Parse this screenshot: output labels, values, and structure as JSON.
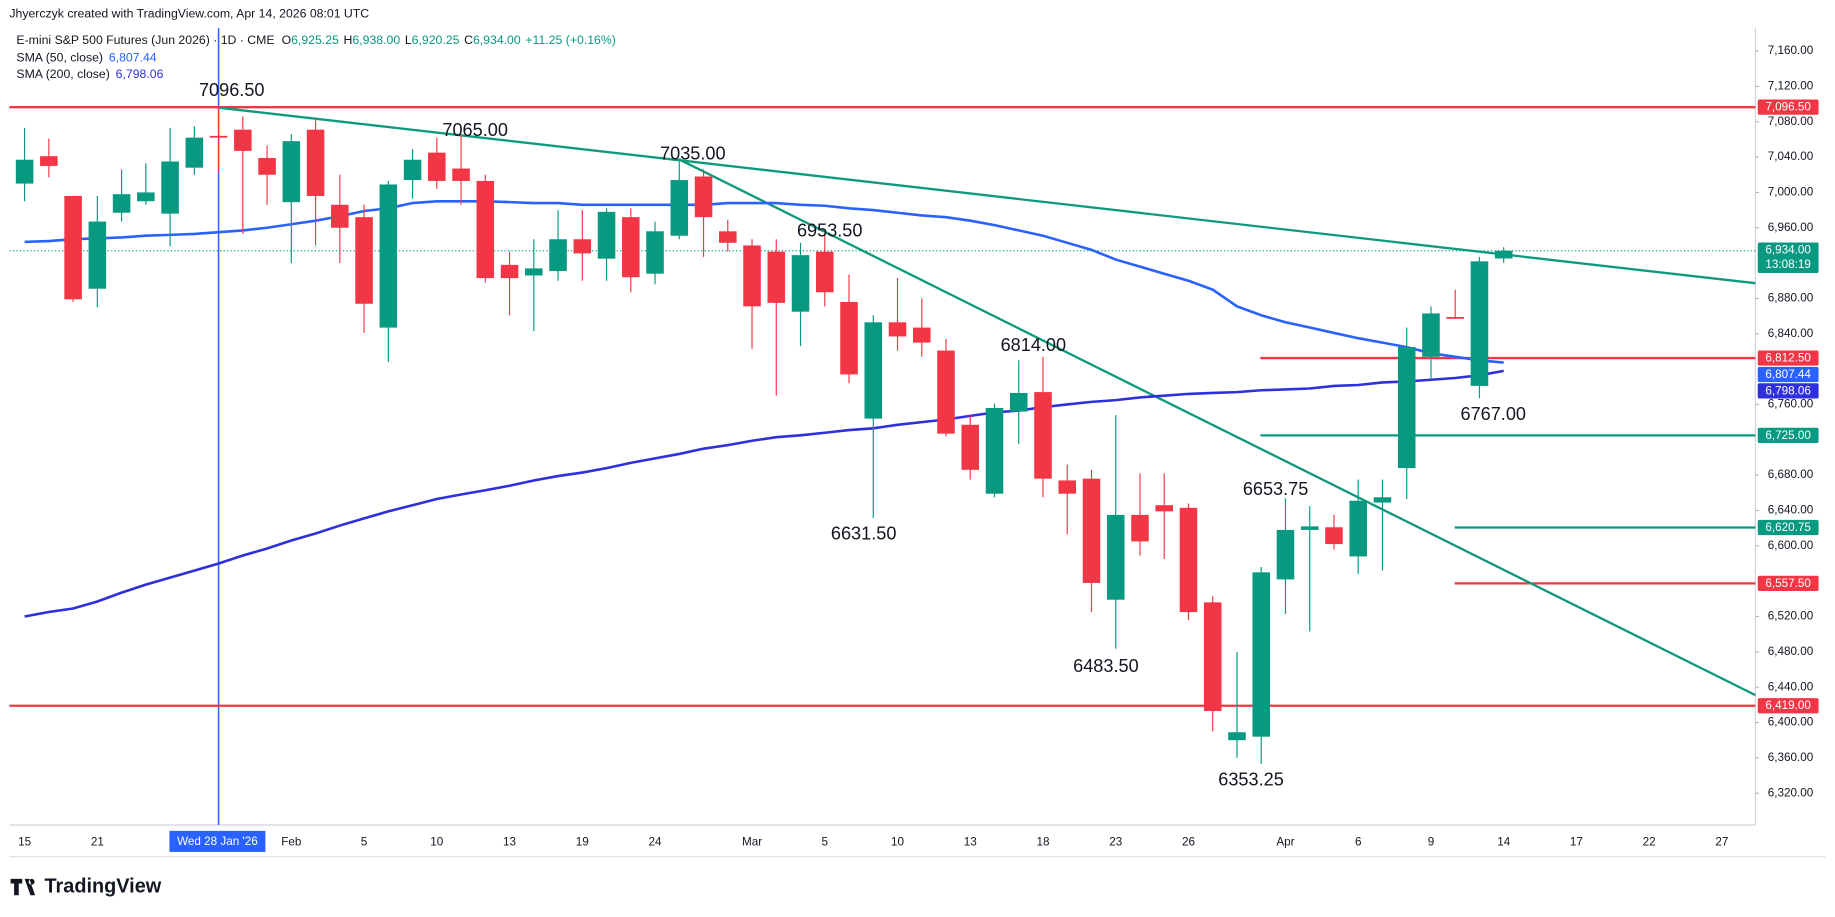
{
  "chart_data": {
    "type": "candlestick",
    "credit": "Jhyerczyk created with TradingView.com, Apr 14, 2026 08:01 UTC",
    "symbol": "E-mini S&P 500 Futures (Jun 2026) · 1D · CME",
    "ohlc_legend": [
      {
        "label": "O",
        "value": "6,925.25"
      },
      {
        "label": "H",
        "value": "6,938.00"
      },
      {
        "label": "L",
        "value": "6,920.25"
      },
      {
        "label": "C",
        "value": "6,934.00"
      }
    ],
    "change": "+11.25 (+0.16%)",
    "up_color": "#089981",
    "down_color": "#f23645",
    "categories": [
      "15",
      null,
      null,
      "21",
      null,
      null,
      null,
      null,
      null,
      null,
      null,
      "Feb",
      null,
      null,
      "5",
      null,
      null,
      "10",
      null,
      null,
      "13",
      null,
      null,
      "19",
      null,
      null,
      "24",
      null,
      null,
      null,
      "Mar",
      null,
      null,
      "5",
      null,
      null,
      "10",
      null,
      null,
      "13",
      null,
      null,
      "18",
      null,
      null,
      "23",
      null,
      null,
      "26",
      null,
      null,
      null,
      "Apr",
      null,
      null,
      "6",
      null,
      null,
      "9",
      null,
      null,
      "14",
      null,
      null,
      "17",
      null,
      null,
      "22",
      null,
      null,
      "27",
      null
    ],
    "open": [
      7010,
      7041,
      6996,
      6891,
      6977,
      6990,
      6976,
      7028,
      7064,
      7071,
      7039,
      6989,
      7071,
      6986,
      6972,
      6847,
      7014,
      7045,
      7027,
      7013,
      6918,
      6906,
      6911,
      6947,
      6925,
      6972,
      6908,
      6951,
      7018,
      6956,
      6940,
      6933,
      6865,
      6933,
      6876,
      6744,
      6853,
      6847,
      6821,
      6737,
      6659,
      6752,
      6774,
      6674,
      6676,
      6539,
      6635,
      6646,
      6643,
      6536,
      6380,
      6384,
      6562,
      6618,
      6621,
      6588,
      6649,
      6688,
      6814,
      6859,
      6781,
      6925.25,
      null,
      null,
      null,
      null,
      null,
      null,
      null,
      null,
      null,
      null
    ],
    "high": [
      7073,
      7061,
      6996,
      6996,
      7026,
      7033,
      7073,
      7075,
      7096.5,
      7086,
      7053,
      7066,
      7082,
      7020,
      6986,
      7013,
      7049,
      7062,
      7065,
      7020,
      6933,
      6947,
      6980,
      6980,
      6982,
      6982,
      6967,
      7035,
      7026,
      6969,
      6947,
      6947,
      6943,
      6953.5,
      6907,
      6861,
      6903,
      6880,
      6834,
      6748,
      6761,
      6810,
      6814,
      6692,
      6686,
      6748,
      6682,
      6682,
      6648,
      6543,
      6480,
      6576,
      6653.75,
      6645,
      6635,
      6675,
      6675,
      6847,
      6871,
      6890,
      6927,
      6938,
      null,
      null,
      null,
      null,
      null,
      null,
      null,
      null,
      null,
      null
    ],
    "low": [
      6990,
      7017,
      6876,
      6870,
      6967,
      6986,
      6939,
      7020,
      7022,
      6953,
      6986,
      6920,
      6940,
      6920,
      6841,
      6808,
      6993,
      7004,
      6986,
      6898,
      6861,
      6843,
      6900,
      6900,
      6900,
      6887,
      6896,
      6947,
      6927,
      6933,
      6823,
      6770,
      6826,
      6871,
      6784,
      6631.5,
      6821,
      6814,
      6724,
      6675,
      6655,
      6715,
      6655,
      6613,
      6525,
      6483.5,
      6589,
      6585,
      6516,
      6390,
      6360,
      6353.25,
      6523,
      6503,
      6596,
      6568,
      6572,
      6653,
      6788,
      6857,
      6767,
      6920.25,
      null,
      null,
      null,
      null,
      null,
      null,
      null,
      null,
      null,
      null
    ],
    "close": [
      7037,
      7030,
      6879,
      6967,
      6998,
      7000,
      7035,
      7062,
      7062,
      7047,
      7020,
      7058,
      6996,
      6960,
      6874,
      7009,
      7037,
      7013,
      7013,
      6903,
      6903,
      6914,
      6947,
      6931,
      6978,
      6904,
      6956,
      7014,
      6972,
      6943,
      6871,
      6875,
      6929,
      6887,
      6794,
      6853,
      6837,
      6830,
      6727,
      6686,
      6756,
      6773,
      6676,
      6659,
      6558,
      6635,
      6605,
      6639,
      6525,
      6413,
      6389,
      6570,
      6618,
      6622,
      6602,
      6651,
      6655,
      6825,
      6863,
      6857,
      6922,
      6934,
      null,
      null,
      null,
      null,
      null,
      null,
      null,
      null,
      null,
      null
    ],
    "sma": [
      {
        "name": "SMA (50, close)",
        "color": "#2962ff",
        "value_label": "6,807.44",
        "values": [
          6944,
          6945,
          6947,
          6948,
          6949,
          6951,
          6952,
          6953,
          6955,
          6957,
          6960,
          6964,
          6968,
          6973,
          6979,
          6982,
          6988,
          6990,
          6990,
          6990,
          6989,
          6988,
          6988,
          6986,
          6986,
          6986,
          6986,
          6986,
          6986,
          6988,
          6988,
          6988,
          6986,
          6985,
          6982,
          6980,
          6977,
          6974,
          6972,
          6968,
          6963,
          6957,
          6951,
          6943,
          6935,
          6924,
          6916,
          6908,
          6900,
          6890,
          6871,
          6861,
          6853,
          6847,
          6841,
          6835,
          6830,
          6825,
          6818,
          6814,
          6810,
          6807.44,
          null,
          null,
          null,
          null,
          null,
          null,
          null,
          null,
          null,
          null
        ]
      },
      {
        "name": "SMA (200, close)",
        "color": "#2f2fdc",
        "value_label": "6,798.06",
        "values": [
          6520,
          6525,
          6529,
          6537,
          6547,
          6556,
          6564,
          6572,
          6580,
          6589,
          6597,
          6606,
          6614,
          6623,
          6631,
          6639,
          6646,
          6653,
          6658,
          6663,
          6668,
          6674,
          6679,
          6683,
          6688,
          6694,
          6699,
          6704,
          6710,
          6714,
          6719,
          6723,
          6725,
          6728,
          6731,
          6733,
          6737,
          6740,
          6743,
          6747,
          6751,
          6753,
          6757,
          6760,
          6763,
          6765,
          6768,
          6770,
          6772,
          6773,
          6774,
          6776,
          6777,
          6778,
          6781,
          6782,
          6785,
          6786,
          6788,
          6790,
          6793,
          6798.06,
          null,
          null,
          null,
          null,
          null,
          null,
          null,
          null,
          null,
          null
        ]
      }
    ],
    "levels": [
      {
        "value": 7096.5,
        "label": "7,096.50",
        "color": "#f23645"
      },
      {
        "value": 6812.5,
        "label": "6,812.50",
        "color": "#f23645"
      },
      {
        "value": 6725,
        "label": "6,725.00",
        "color": "#089981"
      },
      {
        "value": 6620.75,
        "label": "6,620.75",
        "color": "#089981"
      },
      {
        "value": 6557.5,
        "label": "6,557.50",
        "color": "#f23645"
      },
      {
        "value": 6419,
        "label": "6,419.00",
        "color": "#f23645"
      }
    ],
    "last_price": {
      "value": 6934,
      "label": "6,934.00",
      "countdown": "13:08:19",
      "color": "#089981"
    },
    "annotations": [
      "7096.50",
      "7065.00",
      "7035.00",
      "6953.50",
      "6814.00",
      "6631.50",
      "6483.50",
      "6353.25",
      "6653.75",
      "6767.00"
    ],
    "crosshair_label": "Wed 28 Jan '26",
    "ylim": [
      6284,
      7186
    ],
    "yticks": [
      {
        "value": 7160,
        "label": "7,160.00"
      },
      {
        "value": 7120,
        "label": "7,120.00"
      },
      {
        "value": 7080,
        "label": "7,080.00"
      },
      {
        "value": 7040,
        "label": "7,040.00"
      },
      {
        "value": 7000,
        "label": "7,000.00"
      },
      {
        "value": 6960,
        "label": "6,960.00"
      },
      {
        "value": 6880,
        "label": "6,880.00"
      },
      {
        "value": 6840,
        "label": "6,840.00"
      },
      {
        "value": 6760,
        "label": "6,760.00"
      },
      {
        "value": 6680,
        "label": "6,680.00"
      },
      {
        "value": 6640,
        "label": "6,640.00"
      },
      {
        "value": 6600,
        "label": "6,600.00"
      },
      {
        "value": 6520,
        "label": "6,520.00"
      },
      {
        "value": 6480,
        "label": "6,480.00"
      },
      {
        "value": 6440,
        "label": "6,440.00"
      },
      {
        "value": 6400,
        "label": "6,400.00"
      },
      {
        "value": 6360,
        "label": "6,360.00"
      },
      {
        "value": 6320,
        "label": "6,320.00"
      }
    ],
    "grid": false,
    "brand": "TradingView"
  }
}
